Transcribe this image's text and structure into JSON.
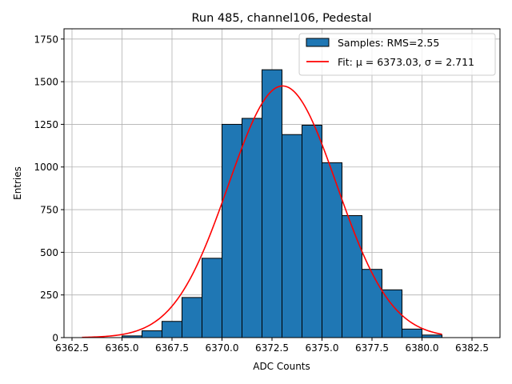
{
  "chart_data": {
    "type": "bar",
    "title": "Run 485, channel106, Pedestal",
    "xlabel": "ADC Counts",
    "ylabel": "Entries",
    "xlim": [
      6362.1,
      6383.9
    ],
    "ylim": [
      0,
      1810
    ],
    "grid": true,
    "legend_position": "top-right",
    "x_ticks": [
      6362.5,
      6365.0,
      6367.5,
      6370.0,
      6372.5,
      6375.0,
      6377.5,
      6380.0,
      6382.5
    ],
    "x_tick_labels": [
      "6362.5",
      "6365.0",
      "6367.5",
      "6370.0",
      "6372.5",
      "6375.0",
      "6377.5",
      "6380.0",
      "6382.5"
    ],
    "y_ticks": [
      0,
      250,
      500,
      750,
      1000,
      1250,
      1500,
      1750
    ],
    "y_tick_labels": [
      "0",
      "250",
      "500",
      "750",
      "1000",
      "1250",
      "1500",
      "1750"
    ],
    "bin_edges": [
      6365,
      6366,
      6367,
      6368,
      6369,
      6370,
      6371,
      6372,
      6373,
      6374,
      6375,
      6376,
      6377,
      6378,
      6379,
      6380,
      6381
    ],
    "values": [
      10,
      40,
      95,
      235,
      465,
      1250,
      1285,
      1570,
      1190,
      1245,
      1025,
      715,
      400,
      280,
      50,
      15
    ],
    "series": [
      {
        "name": "Samples: RMS=2.55",
        "kind": "histogram",
        "color": "#1f77b4",
        "edgecolor": "#000000"
      },
      {
        "name": "Fit: μ = 6373.03, σ = 2.711",
        "kind": "line",
        "color": "#ff0000",
        "mu": 6373.03,
        "sigma": 2.711,
        "amplitude": 1475,
        "x_range": [
          6363,
          6381
        ]
      }
    ],
    "legend": {
      "samples_label": "Samples: RMS=2.55",
      "fit_label": "Fit: μ = 6373.03, σ = 2.711"
    }
  }
}
